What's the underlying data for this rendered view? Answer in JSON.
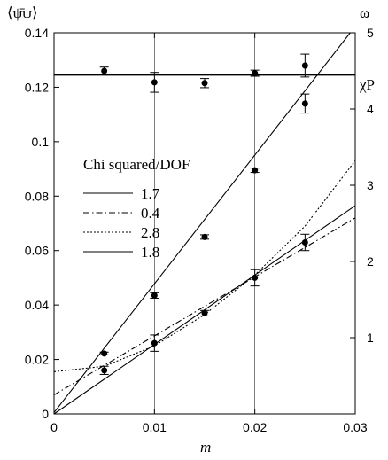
{
  "chart_data": {
    "type": "scatter",
    "xlabel": "m",
    "ylabel_left": "⟨ψ̄ψ⟩",
    "ylabel_right": "ω",
    "ylabel_right_series": "χP",
    "xlim": [
      0,
      0.03
    ],
    "ylim_left": [
      0,
      0.14
    ],
    "ylim_right": [
      0,
      5
    ],
    "x_ticks": [
      "0",
      "0.01",
      "0.02",
      "0.03"
    ],
    "y_left_ticks": [
      "0",
      "0.02",
      "0.04",
      "0.06",
      "0.08",
      "0.1",
      "0.12",
      "0.14"
    ],
    "y_right_ticks": [
      "1",
      "2",
      "3",
      "4",
      "5"
    ],
    "y_left_tick_values": [
      0,
      0.02,
      0.04,
      0.06,
      0.08,
      0.1,
      0.12,
      0.14
    ],
    "y_right_tick_values": [
      1,
      2,
      3,
      4,
      5
    ],
    "x_tick_values": [
      0,
      0.01,
      0.02,
      0.03
    ],
    "legend": {
      "title": "Chi squared/DOF",
      "entries": [
        {
          "label": "1.7",
          "style": "solid"
        },
        {
          "label": "0.4",
          "style": "dashdot"
        },
        {
          "label": "2.8",
          "style": "dotted"
        },
        {
          "label": "1.8",
          "style": "solid"
        }
      ]
    },
    "series": [
      {
        "x": [
          0.005,
          0.01,
          0.015,
          0.02,
          0.025
        ],
        "y": [
          4.5,
          4.35,
          4.34,
          4.47,
          4.57
        ],
        "yerr": [
          0.05,
          0.13,
          0.06,
          0.04,
          0.15
        ],
        "axis": "right"
      },
      {
        "x": [
          0.005,
          0.01,
          0.015,
          0.02,
          0.025
        ],
        "y": [
          0.0222,
          0.0435,
          0.065,
          0.0895,
          0.114
        ],
        "yerr": [
          0.0005,
          0.001,
          0.0008,
          0.0008,
          0.0035
        ],
        "axis": "left"
      },
      {
        "x": [
          0.005,
          0.01,
          0.015,
          0.02,
          0.025
        ],
        "y": [
          0.016,
          0.026,
          0.037,
          0.05,
          0.063
        ],
        "yerr": [
          0.0015,
          0.003,
          0.001,
          0.003,
          0.003
        ],
        "axis": "left"
      }
    ],
    "fit_lines": [
      {
        "x": [
          0,
          0.0295
        ],
        "y": [
          0.0005,
          0.14
        ],
        "style": "solid"
      },
      {
        "x": [
          0,
          0.03
        ],
        "y": [
          0.007,
          0.072
        ],
        "style": "dashdot"
      },
      {
        "x": [
          0,
          0.005,
          0.01,
          0.015,
          0.02,
          0.025,
          0.03
        ],
        "y": [
          0.0155,
          0.0175,
          0.025,
          0.0365,
          0.051,
          0.069,
          0.093
        ],
        "style": "dotted"
      },
      {
        "x": [
          0,
          0.03
        ],
        "y": [
          0.0,
          0.0765
        ],
        "style": "solid"
      },
      {
        "x": [
          0,
          0.03
        ],
        "y": [
          4.45,
          4.45
        ],
        "style": "solid",
        "axis": "right",
        "thick": true
      }
    ]
  }
}
